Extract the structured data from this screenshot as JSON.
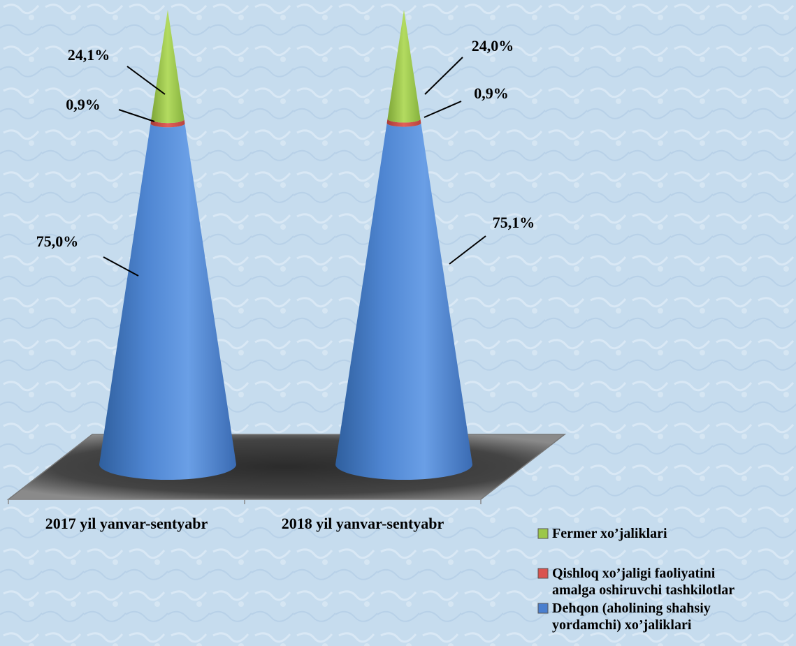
{
  "chart_data": {
    "type": "bar",
    "style": "3d-cone-stacked-100",
    "categories": [
      "2017 yil yanvar-sentyabr",
      "2018 yil yanvar-sentyabr"
    ],
    "series": [
      {
        "name": "Dehqon (aholining shahsiy yordamchi) xo’jaliklari",
        "color": "#4a7fcf",
        "values": [
          75.0,
          75.1
        ],
        "labels": [
          "75,0%",
          "75,1%"
        ]
      },
      {
        "name": "Qishloq xo’jaligi faoliyatini amalga oshiruvchi tashkilotlar",
        "color": "#d9534f",
        "values": [
          0.9,
          0.9
        ],
        "labels": [
          "0,9%",
          "0,9%"
        ]
      },
      {
        "name": "Fermer xo’jaliklari",
        "color": "#9cc74a",
        "values": [
          24.1,
          24.0
        ],
        "labels": [
          "24,1%",
          "24,0%"
        ]
      }
    ],
    "legend": {
      "position": "bottom-right",
      "items": [
        {
          "lines": [
            "Fermer xo’jaliklari"
          ],
          "color": "#9cc74a"
        },
        {
          "lines": [
            "Qishloq xo’jaligi faoliyatini",
            "amalga oshiruvchi tashkilotlar"
          ],
          "color": "#d9534f"
        },
        {
          "lines": [
            "Dehqon (aholining shahsiy",
            "yordamchi) xo’jaliklari"
          ],
          "color": "#4a7fcf"
        }
      ]
    }
  }
}
